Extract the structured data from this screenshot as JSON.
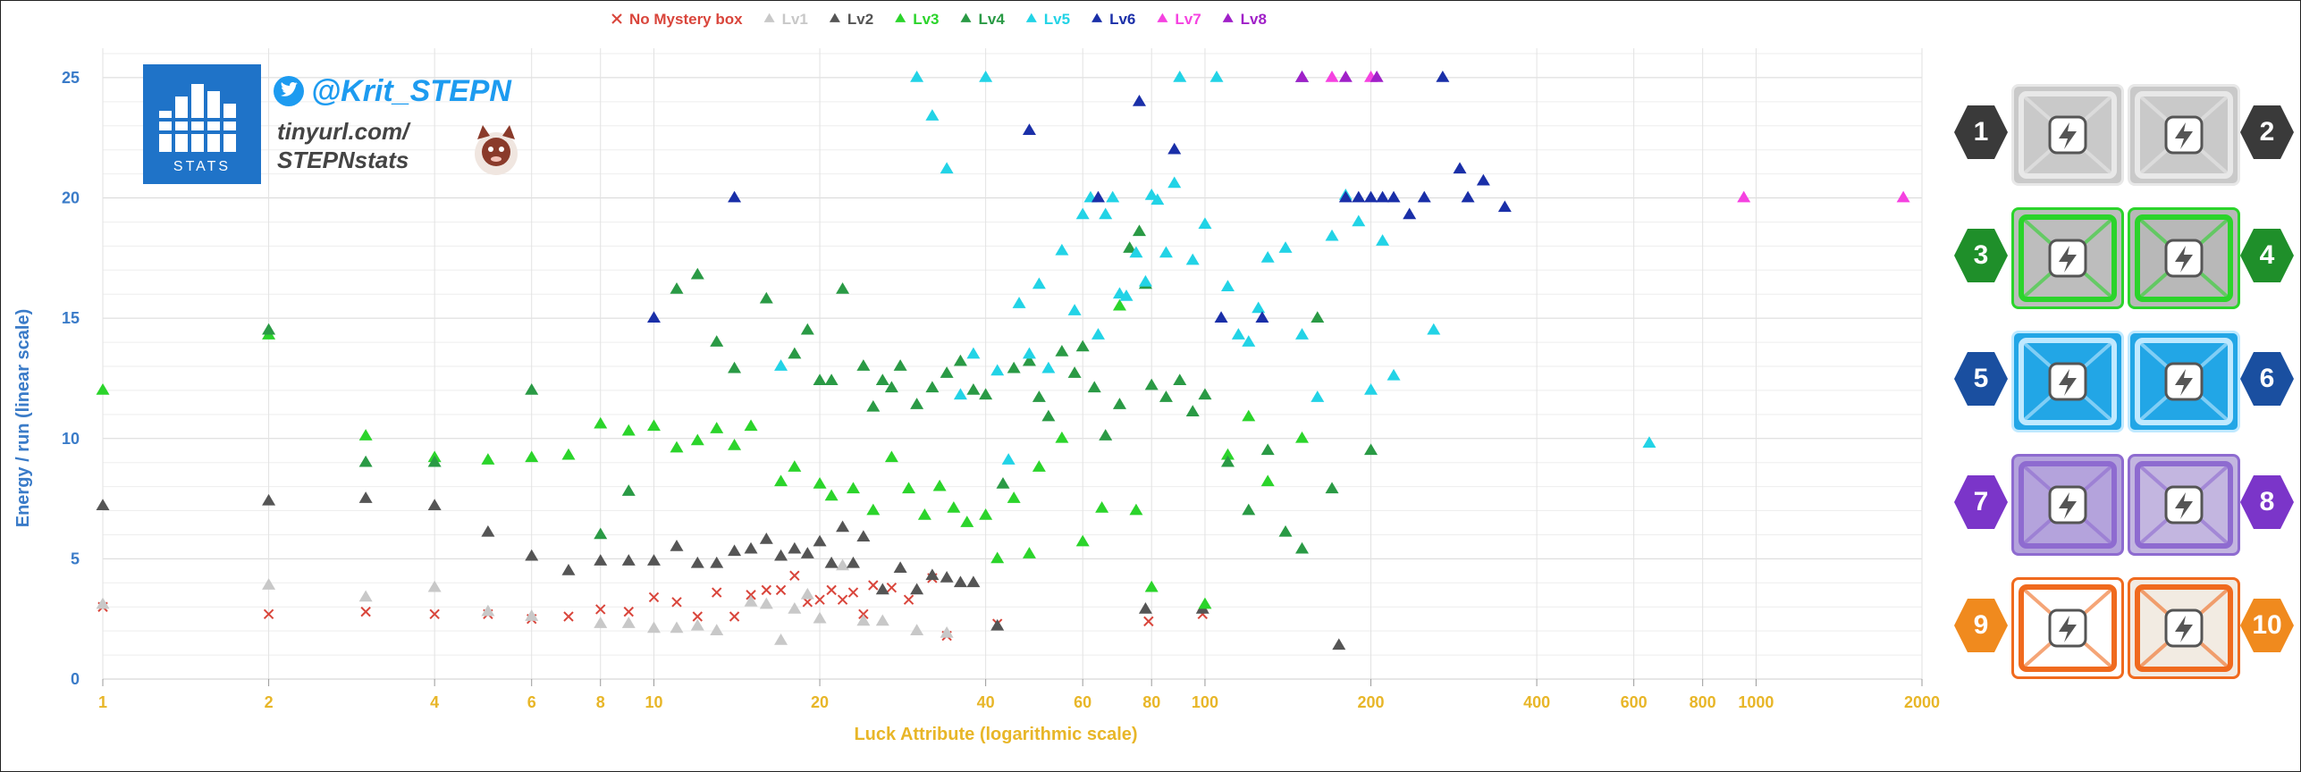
{
  "chart_data": {
    "type": "scatter",
    "title": "",
    "xlabel": "Luck Attribute (logarithmic scale)",
    "ylabel": "Energy / run (linear scale)",
    "xscale": "log",
    "xlim": [
      1,
      2000
    ],
    "ylim": [
      0,
      26
    ],
    "x_ticks": [
      1,
      2,
      4,
      6,
      8,
      10,
      20,
      40,
      60,
      80,
      100,
      200,
      400,
      600,
      800,
      1000,
      2000
    ],
    "y_ticks": [
      0,
      5,
      10,
      15,
      20,
      25
    ],
    "grid": true,
    "legend_position": "top-center",
    "series": [
      {
        "name": "No Mystery box",
        "marker": "x",
        "color": "#d9453b",
        "x": [
          1,
          2,
          3,
          4,
          5,
          6,
          7,
          8,
          9,
          10,
          11,
          12,
          13,
          14,
          15,
          16,
          17,
          18,
          19,
          20,
          21,
          22,
          23,
          24,
          25,
          27,
          29,
          32,
          34,
          42,
          79,
          99
        ],
        "y": [
          3.0,
          2.7,
          2.8,
          2.7,
          2.7,
          2.5,
          2.6,
          2.9,
          2.8,
          3.4,
          3.2,
          2.6,
          3.6,
          2.6,
          3.5,
          3.7,
          3.7,
          4.3,
          3.2,
          3.3,
          3.7,
          3.3,
          3.6,
          2.7,
          3.9,
          3.8,
          3.3,
          4.2,
          1.8,
          2.3,
          2.4,
          2.7
        ]
      },
      {
        "name": "Lv1",
        "marker": "triangle",
        "color": "#c8c8c8",
        "x": [
          1,
          2,
          3,
          4,
          5,
          6,
          8,
          9,
          10,
          11,
          12,
          13,
          15,
          16,
          17,
          18,
          19,
          20,
          22,
          24,
          26,
          30,
          34
        ],
        "y": [
          3.1,
          3.9,
          3.4,
          3.8,
          2.8,
          2.6,
          2.3,
          2.3,
          2.1,
          2.1,
          2.2,
          2.0,
          3.2,
          3.1,
          1.6,
          2.9,
          3.5,
          2.5,
          4.7,
          2.4,
          2.4,
          2.0,
          1.9
        ]
      },
      {
        "name": "Lv2",
        "marker": "triangle",
        "color": "#555555",
        "x": [
          1,
          2,
          3,
          4,
          5,
          6,
          7,
          8,
          9,
          10,
          11,
          12,
          13,
          14,
          15,
          16,
          17,
          18,
          19,
          20,
          21,
          22,
          23,
          24,
          26,
          28,
          30,
          32,
          34,
          36,
          38,
          42,
          78,
          99,
          175
        ],
        "y": [
          7.2,
          7.4,
          7.5,
          7.2,
          6.1,
          5.1,
          4.5,
          4.9,
          4.9,
          4.9,
          5.5,
          4.8,
          4.8,
          5.3,
          5.4,
          5.8,
          5.1,
          5.4,
          5.2,
          5.7,
          4.8,
          6.3,
          4.8,
          5.9,
          3.7,
          4.6,
          3.7,
          4.3,
          4.2,
          4.0,
          4.0,
          2.2,
          2.9,
          2.9,
          1.4
        ]
      },
      {
        "name": "Lv3",
        "marker": "triangle",
        "color": "#2bd42b",
        "x": [
          1,
          2,
          3,
          4,
          5,
          6,
          7,
          8,
          9,
          10,
          11,
          12,
          13,
          14,
          15,
          17,
          18,
          20,
          21,
          23,
          25,
          27,
          29,
          31,
          33,
          35,
          37,
          40,
          42,
          45,
          48,
          50,
          55,
          60,
          65,
          70,
          75,
          80,
          100,
          110,
          120,
          130,
          150
        ],
        "y": [
          12.0,
          14.3,
          10.1,
          9.2,
          9.1,
          9.2,
          9.3,
          10.6,
          10.3,
          10.5,
          9.6,
          9.9,
          10.4,
          9.7,
          10.5,
          8.2,
          8.8,
          8.1,
          7.6,
          7.9,
          7.0,
          9.2,
          7.9,
          6.8,
          8.0,
          7.1,
          6.5,
          6.8,
          5.0,
          7.5,
          5.2,
          8.8,
          10.0,
          5.7,
          7.1,
          15.5,
          7.0,
          3.8,
          3.1,
          9.3,
          10.9,
          8.2,
          10.0
        ]
      },
      {
        "name": "Lv4",
        "marker": "triangle",
        "color": "#2a9a45",
        "x": [
          2,
          3,
          4,
          6,
          8,
          9,
          11,
          12,
          13,
          14,
          16,
          18,
          19,
          20,
          21,
          22,
          24,
          25,
          26,
          27,
          28,
          30,
          32,
          34,
          36,
          38,
          40,
          43,
          45,
          48,
          50,
          52,
          55,
          58,
          60,
          63,
          66,
          70,
          73,
          76,
          78,
          80,
          85,
          90,
          95,
          100,
          110,
          120,
          130,
          140,
          150,
          160,
          170,
          200
        ],
        "y": [
          14.5,
          9.0,
          9.0,
          12.0,
          6.0,
          7.8,
          16.2,
          16.8,
          14.0,
          12.9,
          15.8,
          13.5,
          14.5,
          12.4,
          12.4,
          16.2,
          13.0,
          11.3,
          12.4,
          12.1,
          13.0,
          11.4,
          12.1,
          12.7,
          13.2,
          12.0,
          11.8,
          8.1,
          12.9,
          13.2,
          11.7,
          10.9,
          13.6,
          12.7,
          13.8,
          12.1,
          10.1,
          11.4,
          17.9,
          18.6,
          16.4,
          12.2,
          11.7,
          12.4,
          11.1,
          11.8,
          9.0,
          7.0,
          9.5,
          6.1,
          5.4,
          15.0,
          7.9,
          9.5
        ]
      },
      {
        "name": "Lv5",
        "marker": "triangle",
        "color": "#22d3e6",
        "x": [
          17,
          30,
          32,
          34,
          36,
          38,
          40,
          42,
          44,
          46,
          48,
          50,
          52,
          55,
          58,
          60,
          62,
          64,
          66,
          68,
          70,
          72,
          75,
          78,
          80,
          82,
          85,
          88,
          90,
          95,
          100,
          105,
          110,
          115,
          120,
          125,
          130,
          140,
          150,
          160,
          170,
          180,
          190,
          200,
          210,
          220,
          260,
          640
        ],
        "y": [
          13.0,
          25.0,
          23.4,
          21.2,
          11.8,
          13.5,
          25.0,
          12.8,
          9.1,
          15.6,
          13.5,
          16.4,
          12.9,
          17.8,
          15.3,
          19.3,
          20.0,
          14.3,
          19.3,
          20.0,
          16.0,
          15.9,
          17.7,
          16.5,
          20.1,
          19.9,
          17.7,
          20.6,
          25.0,
          17.4,
          18.9,
          25.0,
          16.3,
          14.3,
          14.0,
          15.4,
          17.5,
          17.9,
          14.3,
          11.7,
          18.4,
          20.1,
          19.0,
          12.0,
          18.2,
          12.6,
          14.5,
          9.8
        ]
      },
      {
        "name": "Lv6",
        "marker": "triangle",
        "color": "#1a2fa8",
        "x": [
          10,
          14,
          48,
          64,
          76,
          88,
          107,
          127,
          150,
          180,
          190,
          200,
          210,
          220,
          235,
          250,
          270,
          290,
          300,
          320,
          350
        ],
        "y": [
          15.0,
          20.0,
          22.8,
          20.0,
          24.0,
          22.0,
          15.0,
          15.0,
          25.0,
          20.0,
          20.0,
          20.0,
          20.0,
          20.0,
          19.3,
          20.0,
          25.0,
          21.2,
          20.0,
          20.7,
          19.6
        ]
      },
      {
        "name": "Lv7",
        "marker": "triangle",
        "color": "#f542e0",
        "x": [
          170,
          200,
          950,
          1850
        ],
        "y": [
          25.0,
          25.0,
          20.0,
          20.0
        ]
      },
      {
        "name": "Lv8",
        "marker": "triangle",
        "color": "#a020c8",
        "x": [
          150,
          180,
          205
        ],
        "y": [
          25.0,
          25.0,
          25.0
        ]
      }
    ]
  },
  "branding": {
    "twitter_handle": "@Krit_STEPN",
    "site_line1": "tinyurl.com/",
    "site_line2": "STEPNstats",
    "logo_text": "STATS"
  },
  "mystery_boxes": {
    "levels": [
      {
        "label": "1",
        "badge_color": "#3a3a3a",
        "box_color": "#c9c9c9",
        "accent": "#e8e8e8"
      },
      {
        "label": "2",
        "badge_color": "#3a3a3a",
        "box_color": "#c9c9c9",
        "accent": "#e8e8e8"
      },
      {
        "label": "3",
        "badge_color": "#1f8f2a",
        "box_color": "#bdbdbd",
        "accent": "#2bd42b"
      },
      {
        "label": "4",
        "badge_color": "#1f8f2a",
        "box_color": "#b8b8b8",
        "accent": "#2bd42b"
      },
      {
        "label": "5",
        "badge_color": "#1a4fa0",
        "box_color": "#22a6e6",
        "accent": "#bfe9ff"
      },
      {
        "label": "6",
        "badge_color": "#1a4fa0",
        "box_color": "#22a6e6",
        "accent": "#bfe9ff"
      },
      {
        "label": "7",
        "badge_color": "#7b35c9",
        "box_color": "#b4a3dc",
        "accent": "#8e6bd0"
      },
      {
        "label": "8",
        "badge_color": "#7b35c9",
        "box_color": "#c3b6e0",
        "accent": "#8e6bd0"
      },
      {
        "label": "9",
        "badge_color": "#f08a1e",
        "box_color": "#ffffff",
        "accent": "#f06a1e"
      },
      {
        "label": "10",
        "badge_color": "#f08a1e",
        "box_color": "#f2ebe2",
        "accent": "#f06a1e"
      }
    ]
  }
}
